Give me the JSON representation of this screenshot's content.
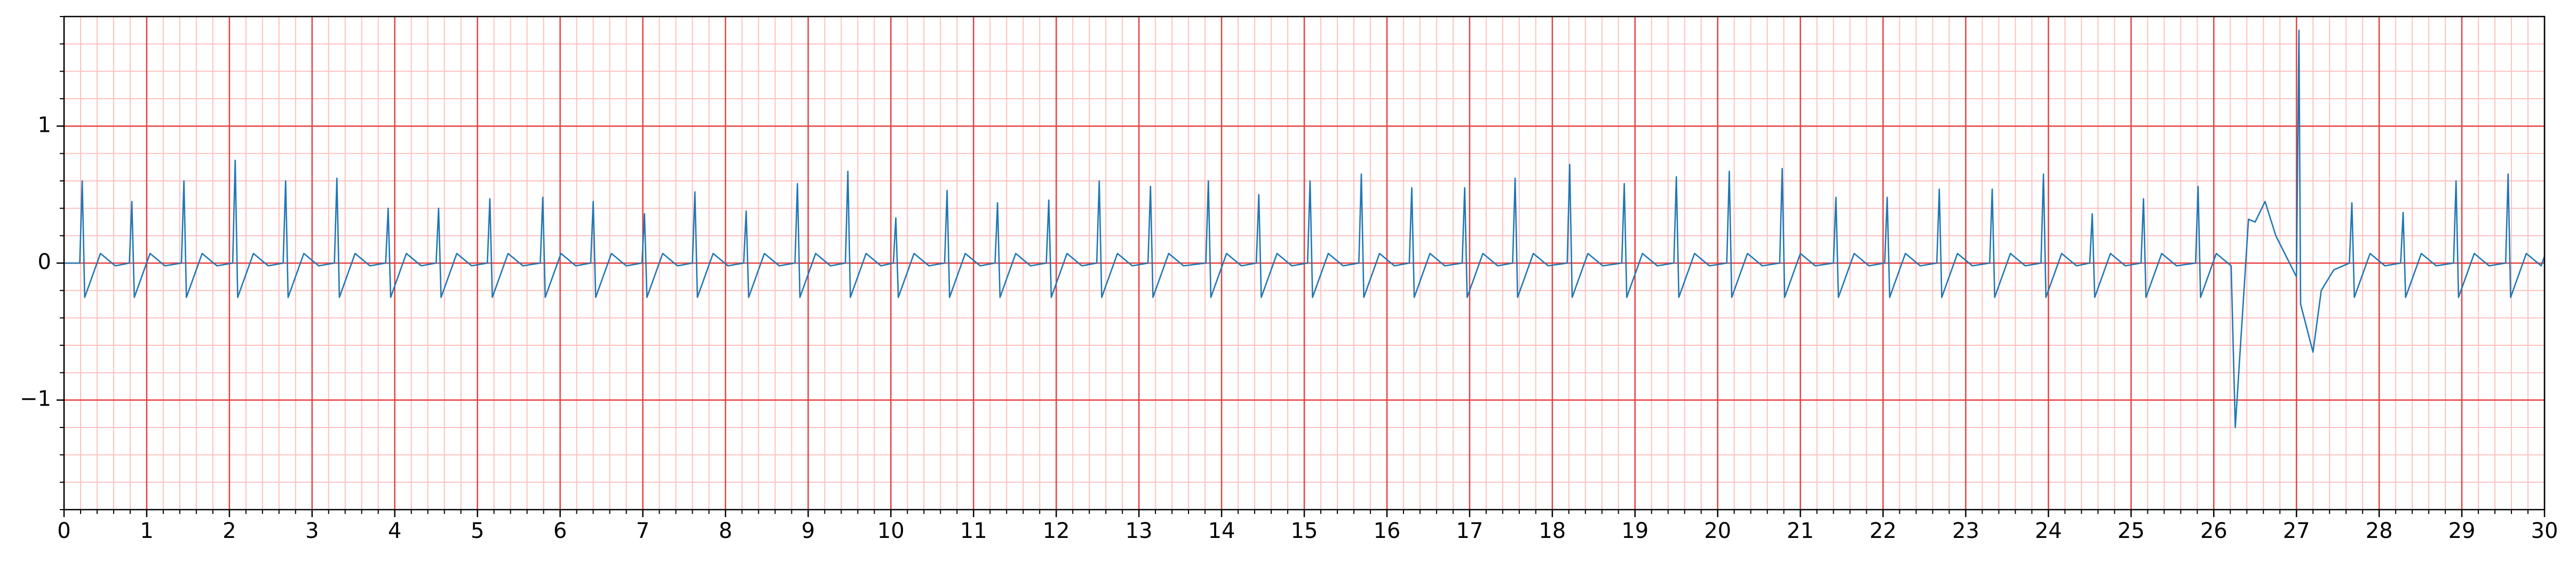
{
  "chart_data": {
    "type": "line",
    "color": "#1f77b4",
    "x": [
      0,
      0.19,
      0.22,
      0.25,
      0.44,
      0.62,
      0.79,
      0.82,
      0.85,
      1.04,
      1.22,
      1.42,
      1.45,
      1.48,
      1.67,
      1.85,
      2.04,
      2.07,
      2.1,
      2.29,
      2.47,
      2.65,
      2.68,
      2.71,
      2.9,
      3.08,
      3.27,
      3.3,
      3.33,
      3.52,
      3.7,
      3.89,
      3.92,
      3.95,
      4.14,
      4.32,
      4.5,
      4.53,
      4.56,
      4.75,
      4.93,
      5.12,
      5.15,
      5.18,
      5.37,
      5.55,
      5.76,
      5.79,
      5.82,
      6.01,
      6.19,
      6.37,
      6.4,
      6.43,
      6.62,
      6.8,
      6.99,
      7.02,
      7.05,
      7.24,
      7.42,
      7.6,
      7.63,
      7.66,
      7.85,
      8.03,
      8.22,
      8.25,
      8.28,
      8.47,
      8.65,
      8.84,
      8.87,
      8.9,
      9.09,
      9.27,
      9.45,
      9.48,
      9.51,
      9.7,
      9.88,
      10.03,
      10.06,
      10.09,
      10.28,
      10.46,
      10.65,
      10.68,
      10.71,
      10.9,
      11.08,
      11.26,
      11.29,
      11.32,
      11.51,
      11.69,
      11.88,
      11.91,
      11.94,
      12.13,
      12.31,
      12.49,
      12.52,
      12.55,
      12.74,
      12.92,
      13.11,
      13.14,
      13.17,
      13.36,
      13.54,
      13.81,
      13.84,
      13.87,
      14.06,
      14.24,
      14.42,
      14.45,
      14.48,
      14.67,
      14.85,
      15.04,
      15.07,
      15.1,
      15.29,
      15.47,
      15.66,
      15.69,
      15.72,
      15.91,
      16.09,
      16.27,
      16.3,
      16.33,
      16.52,
      16.7,
      16.91,
      16.94,
      16.97,
      17.16,
      17.34,
      17.52,
      17.55,
      17.58,
      17.77,
      17.95,
      18.18,
      18.21,
      18.24,
      18.43,
      18.61,
      18.84,
      18.87,
      18.9,
      19.09,
      19.27,
      19.47,
      19.5,
      19.53,
      19.72,
      19.9,
      20.11,
      20.14,
      20.17,
      20.36,
      20.54,
      20.75,
      20.78,
      20.81,
      21.0,
      21.18,
      21.4,
      21.43,
      21.46,
      21.65,
      21.83,
      22.02,
      22.05,
      22.08,
      22.27,
      22.45,
      22.65,
      22.68,
      22.71,
      22.9,
      23.08,
      23.29,
      23.32,
      23.35,
      23.54,
      23.72,
      23.91,
      23.94,
      23.97,
      24.16,
      24.34,
      24.5,
      24.53,
      24.56,
      24.75,
      24.93,
      25.12,
      25.15,
      25.18,
      25.37,
      25.55,
      25.78,
      25.81,
      25.84,
      26.03,
      26.21,
      26.26,
      26.42,
      26.5,
      26.62,
      26.75,
      26.9,
      27.0,
      27.03,
      27.05,
      27.2,
      27.3,
      27.45,
      27.64,
      27.67,
      27.7,
      27.89,
      28.07,
      28.26,
      28.29,
      28.32,
      28.51,
      28.69,
      28.9,
      28.93,
      28.96,
      29.15,
      29.33,
      29.53,
      29.56,
      29.59,
      29.78,
      29.96,
      30
    ],
    "values": [
      0,
      0,
      0.6,
      -0.25,
      0.07,
      -0.02,
      0,
      0.45,
      -0.25,
      0.07,
      -0.02,
      0,
      0.6,
      -0.25,
      0.07,
      -0.02,
      0,
      0.75,
      -0.25,
      0.07,
      -0.02,
      0,
      0.6,
      -0.25,
      0.07,
      -0.02,
      0,
      0.62,
      -0.25,
      0.07,
      -0.02,
      0,
      0.4,
      -0.25,
      0.07,
      -0.02,
      0,
      0.4,
      -0.25,
      0.07,
      -0.02,
      0,
      0.47,
      -0.25,
      0.07,
      -0.02,
      0,
      0.48,
      -0.25,
      0.07,
      -0.02,
      0,
      0.45,
      -0.25,
      0.07,
      -0.02,
      0,
      0.36,
      -0.25,
      0.07,
      -0.02,
      0,
      0.52,
      -0.25,
      0.07,
      -0.02,
      0,
      0.38,
      -0.25,
      0.07,
      -0.02,
      0,
      0.58,
      -0.25,
      0.07,
      -0.02,
      0,
      0.67,
      -0.25,
      0.07,
      -0.02,
      0,
      0.33,
      -0.25,
      0.07,
      -0.02,
      0,
      0.53,
      -0.25,
      0.07,
      -0.02,
      0,
      0.44,
      -0.25,
      0.07,
      -0.02,
      0,
      0.46,
      -0.25,
      0.07,
      -0.02,
      0,
      0.6,
      -0.25,
      0.07,
      -0.02,
      0,
      0.56,
      -0.25,
      0.07,
      -0.02,
      0,
      0.6,
      -0.25,
      0.07,
      -0.02,
      0,
      0.5,
      -0.25,
      0.07,
      -0.02,
      0,
      0.6,
      -0.25,
      0.07,
      -0.02,
      0,
      0.65,
      -0.25,
      0.07,
      -0.02,
      0,
      0.55,
      -0.25,
      0.07,
      -0.02,
      0,
      0.55,
      -0.25,
      0.07,
      -0.02,
      0,
      0.62,
      -0.25,
      0.07,
      -0.02,
      0,
      0.72,
      -0.25,
      0.07,
      -0.02,
      0,
      0.58,
      -0.25,
      0.07,
      -0.02,
      0,
      0.63,
      -0.25,
      0.07,
      -0.02,
      0,
      0.67,
      -0.25,
      0.07,
      -0.02,
      0,
      0.69,
      -0.25,
      0.07,
      -0.02,
      0,
      0.48,
      -0.25,
      0.07,
      -0.02,
      0,
      0.48,
      -0.25,
      0.07,
      -0.02,
      0,
      0.54,
      -0.25,
      0.07,
      -0.02,
      0,
      0.54,
      -0.25,
      0.07,
      -0.02,
      0,
      0.65,
      -0.25,
      0.07,
      -0.02,
      0,
      0.36,
      -0.25,
      0.07,
      -0.02,
      0,
      0.47,
      -0.25,
      0.07,
      -0.02,
      0,
      0.56,
      -0.25,
      0.07,
      -0.02,
      -1.2,
      0.32,
      0.3,
      0.45,
      0.2,
      0.02,
      -0.1,
      1.7,
      -0.3,
      -0.65,
      -0.2,
      -0.05,
      0,
      0.44,
      -0.25,
      0.07,
      -0.02,
      0,
      0.37,
      -0.25,
      0.07,
      -0.02,
      0,
      0.6,
      -0.25,
      0.07,
      -0.02,
      0,
      0.65,
      -0.25,
      0.07,
      -0.02,
      0.05
    ],
    "xlim": [
      0,
      30
    ],
    "ylim": [
      -1.8,
      1.8
    ],
    "xticks": [
      0,
      1,
      2,
      3,
      4,
      5,
      6,
      7,
      8,
      9,
      10,
      11,
      12,
      13,
      14,
      15,
      16,
      17,
      18,
      19,
      20,
      21,
      22,
      23,
      24,
      25,
      26,
      27,
      28,
      29,
      30
    ],
    "yticks": [
      {
        "value": -1,
        "label": "−1"
      },
      0,
      1
    ],
    "grid": true,
    "minor_grid": {
      "x": 0.2,
      "y": 0.2
    }
  }
}
